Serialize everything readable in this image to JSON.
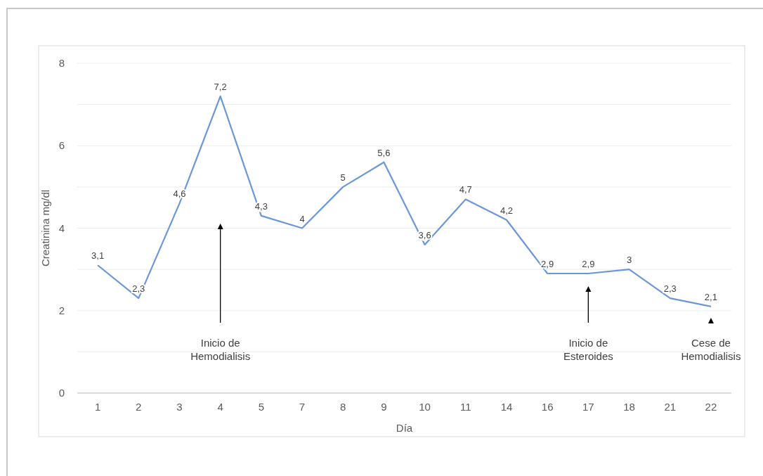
{
  "chart_data": {
    "type": "line",
    "xlabel": "Día",
    "ylabel": "Creatinina mg/dl",
    "categories": [
      "1",
      "2",
      "3",
      "4",
      "5",
      "7",
      "8",
      "9",
      "10",
      "11",
      "14",
      "16",
      "17",
      "18",
      "21",
      "22"
    ],
    "series": [
      {
        "color": "#6b97d6",
        "values": [
          3.1,
          2.3,
          4.6,
          7.2,
          4.3,
          4,
          5,
          5.6,
          3.6,
          4.7,
          4.2,
          2.9,
          2.9,
          3,
          2.3,
          2.1
        ],
        "value_labels": [
          "3,1",
          "2,3",
          "4,6",
          "7,2",
          "4,3",
          "4",
          "5",
          "5,6",
          "3,6",
          "4,7",
          "4,2",
          "2,9",
          "2,9",
          "3",
          "2,3",
          "2,1"
        ]
      }
    ],
    "ylim": [
      0,
      8
    ],
    "yticks": [
      0,
      {
        "value": 1,
        "label": null
      },
      2,
      {
        "value": 3,
        "label": null
      },
      4,
      {
        "value": 5,
        "label": null
      },
      6,
      {
        "value": 7,
        "label": null
      },
      8
    ],
    "grid": "y",
    "marker": "none",
    "line_style": "solid",
    "annotations": [
      "Inicio de Hemodialisis",
      "Inicio de Esteroides",
      "Cese de Hemodialisis"
    ]
  }
}
